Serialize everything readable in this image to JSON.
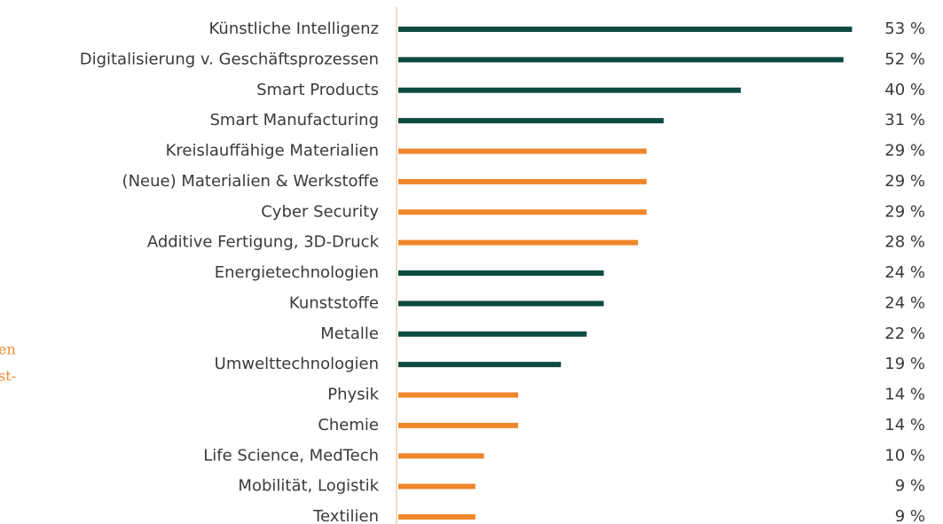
{
  "chart_data": {
    "type": "bar",
    "orientation": "horizontal",
    "categories": [
      "Künstliche Intelligenz",
      "Digitalisierung v. Geschäftsprozessen",
      "Smart Products",
      "Smart Manufacturing",
      "Kreislauffähige Materialien",
      "(Neue) Materialien & Werkstoffe",
      "Cyber Security",
      "Additive Fertigung, 3D-Druck",
      "Energietechnologien",
      "Kunststoffe",
      "Metalle",
      "Umwelttechnologien",
      "Physik",
      "Chemie",
      "Life Science, MedTech",
      "Mobilität, Logistik",
      "Textilien"
    ],
    "values": [
      53,
      52,
      40,
      31,
      29,
      29,
      29,
      28,
      24,
      24,
      22,
      19,
      14,
      14,
      10,
      9,
      9
    ],
    "value_labels": [
      "53 %",
      "52 %",
      "40 %",
      "31 %",
      "29 %",
      "29 %",
      "29 %",
      "28 %",
      "24 %",
      "24 %",
      "22 %",
      "19 %",
      "14 %",
      "14 %",
      "10 %",
      "9 %",
      "9 %"
    ],
    "colors": [
      "#0d4a42",
      "#0d4a42",
      "#0d4a42",
      "#0d4a42",
      "#f0862a",
      "#f0862a",
      "#f0862a",
      "#f0862a",
      "#0d4a42",
      "#0d4a42",
      "#0d4a42",
      "#0d4a42",
      "#f0862a",
      "#f0862a",
      "#f0862a",
      "#f0862a",
      "#f0862a"
    ],
    "annotations": [
      "en",
      "st-"
    ]
  }
}
